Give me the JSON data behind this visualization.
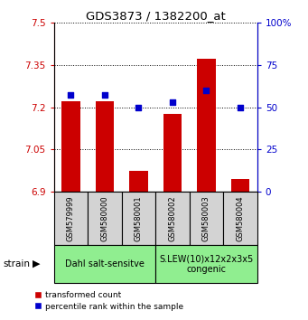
{
  "title": "GDS3873 / 1382200_at",
  "samples": [
    "GSM579999",
    "GSM580000",
    "GSM580001",
    "GSM580002",
    "GSM580003",
    "GSM580004"
  ],
  "bar_values": [
    7.22,
    7.22,
    6.975,
    7.175,
    7.37,
    6.945
  ],
  "scatter_values": [
    57,
    57,
    50,
    53,
    60,
    50
  ],
  "ylim_left": [
    6.9,
    7.5
  ],
  "ylim_right": [
    0,
    100
  ],
  "yticks_left": [
    6.9,
    7.05,
    7.2,
    7.35,
    7.5
  ],
  "yticks_right": [
    0,
    25,
    50,
    75,
    100
  ],
  "ytick_labels_left": [
    "6.9",
    "7.05",
    "7.2",
    "7.35",
    "7.5"
  ],
  "ytick_labels_right": [
    "0",
    "25",
    "50",
    "75",
    "100%"
  ],
  "bar_color": "#cc0000",
  "scatter_color": "#0000cc",
  "bar_bottom": 6.9,
  "group1_label": "Dahl salt-sensitve",
  "group2_label": "S.LEW(10)x12x2x3x5\ncongenic",
  "group1_indices": [
    0,
    1,
    2
  ],
  "group2_indices": [
    3,
    4,
    5
  ],
  "group_bg_color": "#90ee90",
  "sample_bg_color": "#d3d3d3",
  "legend_label1": "transformed count",
  "legend_label2": "percentile rank within the sample",
  "strain_label": "strain"
}
